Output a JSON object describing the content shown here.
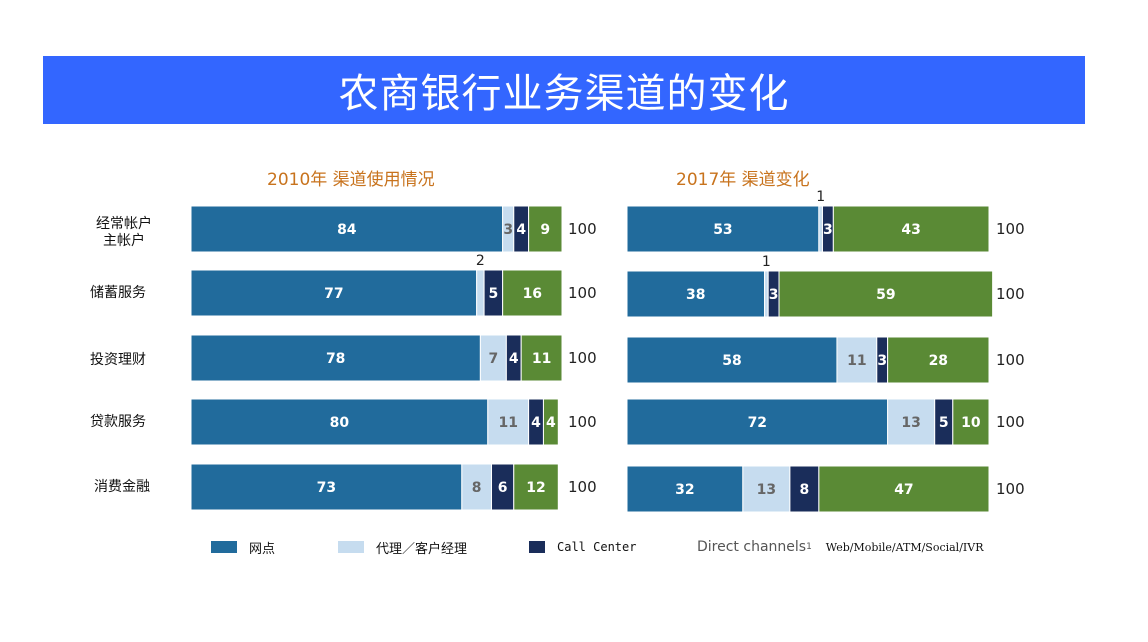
{
  "title": "农商银行业务渠道的变化",
  "rows": [
    {
      "line1": "经常帐户",
      "line2": "主帐户"
    },
    {
      "line1": "储蓄服务",
      "line2": ""
    },
    {
      "line1": "投资理财",
      "line2": ""
    },
    {
      "line1": "贷款服务",
      "line2": ""
    },
    {
      "line1": "消费金融",
      "line2": ""
    }
  ],
  "legend": {
    "branch": "网点",
    "agent": "代理／客户经理",
    "call_center": "Call Center",
    "direct": "Direct channels",
    "direct_sup": "1",
    "direct_desc": "Web/Mobile/ATM/Social/IVR"
  },
  "colors": {
    "branch": "#216b9c",
    "agent": "#c6dcef",
    "call_center": "#1a2d5a",
    "direct": "#5a8a35",
    "title_bg": "#3366ff",
    "panel_title": "#c8731d"
  },
  "chart_data": [
    {
      "type": "bar",
      "orientation": "horizontal-stacked",
      "title": "2010年  渠道使用情况",
      "categories": [
        "经常帐户 主帐户",
        "储蓄服务",
        "投资理财",
        "贷款服务",
        "消费金融"
      ],
      "series": [
        {
          "name": "网点",
          "values": [
            84,
            77,
            78,
            80,
            73
          ]
        },
        {
          "name": "代理／客户经理",
          "values": [
            3,
            2,
            7,
            11,
            8
          ]
        },
        {
          "name": "Call Center",
          "values": [
            4,
            5,
            4,
            4,
            6
          ]
        },
        {
          "name": "Direct channels",
          "values": [
            9,
            16,
            11,
            4,
            12
          ]
        }
      ],
      "totals": [
        100,
        100,
        100,
        100,
        100
      ]
    },
    {
      "type": "bar",
      "orientation": "horizontal-stacked",
      "title": "2017年  渠道变化",
      "categories": [
        "经常帐户 主帐户",
        "储蓄服务",
        "投资理财",
        "贷款服务",
        "消费金融"
      ],
      "series": [
        {
          "name": "网点",
          "values": [
            53,
            38,
            58,
            72,
            32
          ]
        },
        {
          "name": "代理／客户经理",
          "values": [
            1,
            1,
            11,
            13,
            13
          ]
        },
        {
          "name": "Call Center",
          "values": [
            3,
            3,
            3,
            5,
            8
          ]
        },
        {
          "name": "Direct channels",
          "values": [
            43,
            59,
            28,
            10,
            47
          ]
        }
      ],
      "totals": [
        100,
        100,
        100,
        100,
        100
      ]
    }
  ]
}
